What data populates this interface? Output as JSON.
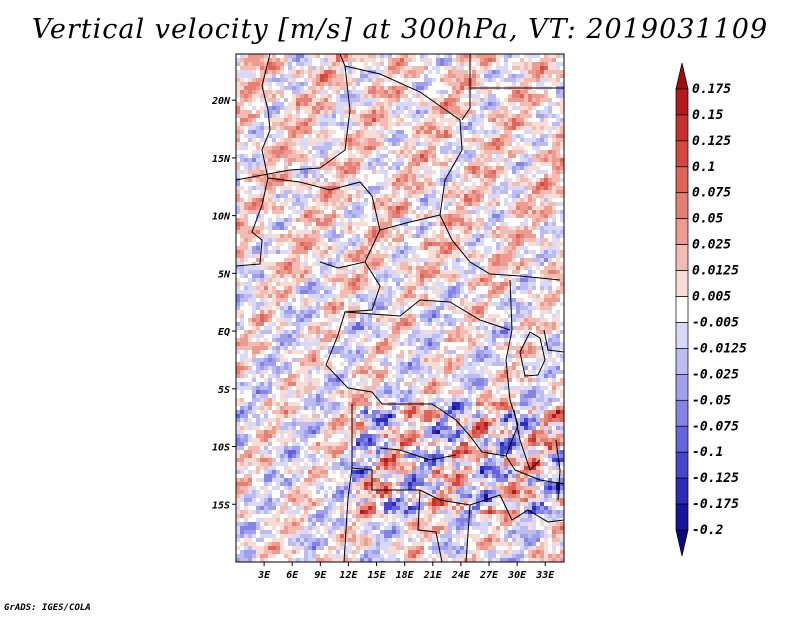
{
  "chart_data": {
    "type": "heatmap",
    "title": "Vertical velocity [m/s] at 300hPa, VT: 2019031109",
    "variable": "Vertical velocity",
    "units": "m/s",
    "level": "300hPa",
    "valid_time": "2019031109",
    "x_range": [
      0,
      35
    ],
    "y_range": [
      -20,
      24
    ],
    "x_ticks": [
      {
        "value": 3,
        "label": "3E"
      },
      {
        "value": 6,
        "label": "6E"
      },
      {
        "value": 9,
        "label": "9E"
      },
      {
        "value": 12,
        "label": "12E"
      },
      {
        "value": 15,
        "label": "15E"
      },
      {
        "value": 18,
        "label": "18E"
      },
      {
        "value": 21,
        "label": "21E"
      },
      {
        "value": 24,
        "label": "24E"
      },
      {
        "value": 27,
        "label": "27E"
      },
      {
        "value": 30,
        "label": "30E"
      },
      {
        "value": 33,
        "label": "33E"
      }
    ],
    "y_ticks": [
      {
        "value": 20,
        "label": "20N"
      },
      {
        "value": 15,
        "label": "15N"
      },
      {
        "value": 10,
        "label": "10N"
      },
      {
        "value": 5,
        "label": "5N"
      },
      {
        "value": 0,
        "label": "EQ"
      },
      {
        "value": -5,
        "label": "5S"
      },
      {
        "value": -10,
        "label": "10S"
      },
      {
        "value": -15,
        "label": "15S"
      }
    ],
    "colorbar": {
      "labels": [
        "0.175",
        "0.15",
        "0.125",
        "0.1",
        "0.075",
        "0.05",
        "0.025",
        "0.0125",
        "0.005",
        "-0.005",
        "-0.0125",
        "-0.025",
        "-0.05",
        "-0.075",
        "-0.1",
        "-0.125",
        "-0.175",
        "-0.2"
      ],
      "colors": [
        "#9c0d14",
        "#b41a1e",
        "#c8302e",
        "#d44840",
        "#de6458",
        "#e48074",
        "#ec9c90",
        "#f2bcb2",
        "#f8dcd6",
        "#ffffff",
        "#d8d8f8",
        "#bcbcf2",
        "#a0a0ec",
        "#8484e4",
        "#6464dc",
        "#4646cc",
        "#2c2cb8",
        "#16169c",
        "#0a0a7c"
      ]
    }
  },
  "credit": "GrADS: IGES/COLA"
}
